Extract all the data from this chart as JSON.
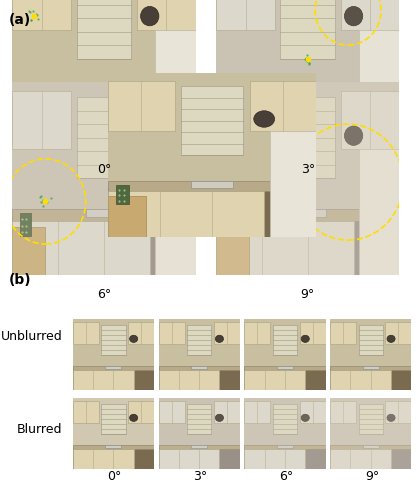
{
  "fig_width": 4.16,
  "fig_height": 5.0,
  "dpi": 100,
  "bg_color": "#ffffff",
  "panel_a_label": "(a)",
  "panel_b_label": "(b)",
  "panel_a_labels": [
    "0°",
    "3°",
    "6°",
    "9°"
  ],
  "panel_b_col_labels": [
    "0°",
    "3°",
    "6°",
    "9°"
  ],
  "panel_b_row_labels": [
    "Unblurred",
    "Blurred"
  ],
  "panel_a_label_fontsize": 9,
  "panel_b_label_fontsize": 9,
  "panel_letter_fontsize": 10,
  "image_colors": {
    "kitchen_dark": "#5a5040",
    "kitchen_mid": "#8a7a60",
    "kitchen_light": "#c8b898",
    "kitchen_wall": "#d8c8a8",
    "kitchen_cabinet": "#e8dcc0",
    "blur_overlay": "#b0a090",
    "white_area": "#f0ece0",
    "counter": "#c0b090"
  },
  "yellow_dot_color": "#ffdd00",
  "dashed_circle_color": "#ffdd00",
  "green_dot_color": "#44aa44"
}
